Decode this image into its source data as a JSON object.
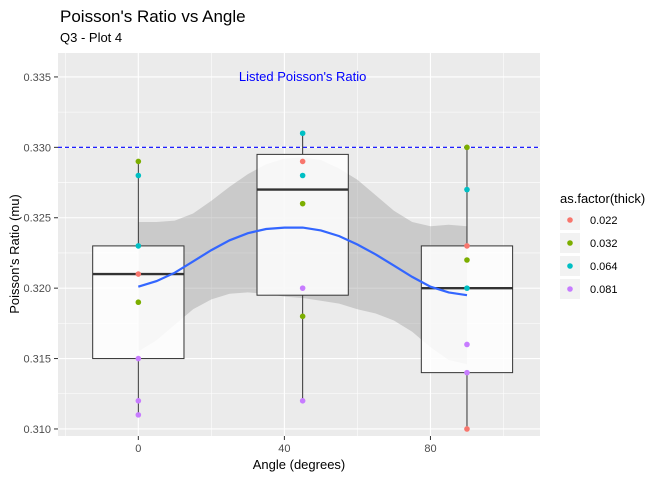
{
  "chart_data": {
    "type": "boxplot-scatter",
    "title": "Poisson's Ratio vs Angle",
    "subtitle": "Q3 - Plot 4",
    "xlabel": "Angle (degrees)",
    "ylabel": "Poisson's Ratio (mu)",
    "xlim": [
      -22,
      110
    ],
    "ylim": [
      0.3095,
      0.3367
    ],
    "x_ticks": [
      0,
      40,
      80
    ],
    "x_tick_labels": [
      "0",
      "40",
      "80"
    ],
    "y_ticks": [
      0.31,
      0.315,
      0.32,
      0.325,
      0.33,
      0.335
    ],
    "y_tick_labels": [
      "0.310",
      "0.315",
      "0.320",
      "0.325",
      "0.330",
      "0.335"
    ],
    "grid": true,
    "legend": {
      "title": "as.factor(thick)",
      "position": "right",
      "entries": [
        {
          "label": "0.022",
          "color": "#F8766D"
        },
        {
          "label": "0.032",
          "color": "#7CAE00"
        },
        {
          "label": "0.064",
          "color": "#00BFC4"
        },
        {
          "label": "0.081",
          "color": "#C77CFF"
        }
      ]
    },
    "reference_line": {
      "y": 0.33,
      "color": "#0000FF",
      "style": "dashed"
    },
    "annotation": {
      "text": "Listed Poisson's Ratio",
      "x": 45,
      "y": 0.3347,
      "color": "#0000FF"
    },
    "boxes": [
      {
        "x": 0,
        "min": 0.311,
        "q1": 0.315,
        "median": 0.321,
        "q3": 0.323,
        "max": 0.329
      },
      {
        "x": 45,
        "min": 0.312,
        "q1": 0.3195,
        "median": 0.327,
        "q3": 0.3295,
        "max": 0.331
      },
      {
        "x": 90,
        "min": 0.31,
        "q1": 0.314,
        "median": 0.32,
        "q3": 0.323,
        "max": 0.33
      }
    ],
    "box_width": 25,
    "points": [
      {
        "x": 0,
        "y": 0.329,
        "group": "0.032"
      },
      {
        "x": 0,
        "y": 0.328,
        "group": "0.064"
      },
      {
        "x": 0,
        "y": 0.323,
        "group": "0.064"
      },
      {
        "x": 0,
        "y": 0.321,
        "group": "0.022"
      },
      {
        "x": 0,
        "y": 0.319,
        "group": "0.032"
      },
      {
        "x": 0,
        "y": 0.315,
        "group": "0.081"
      },
      {
        "x": 0,
        "y": 0.312,
        "group": "0.081"
      },
      {
        "x": 0,
        "y": 0.311,
        "group": "0.081"
      },
      {
        "x": 45,
        "y": 0.331,
        "group": "0.064"
      },
      {
        "x": 45,
        "y": 0.329,
        "group": "0.022"
      },
      {
        "x": 45,
        "y": 0.328,
        "group": "0.064"
      },
      {
        "x": 45,
        "y": 0.326,
        "group": "0.032"
      },
      {
        "x": 45,
        "y": 0.32,
        "group": "0.081"
      },
      {
        "x": 45,
        "y": 0.318,
        "group": "0.032"
      },
      {
        "x": 45,
        "y": 0.312,
        "group": "0.081"
      },
      {
        "x": 90,
        "y": 0.33,
        "group": "0.032"
      },
      {
        "x": 90,
        "y": 0.327,
        "group": "0.064"
      },
      {
        "x": 90,
        "y": 0.323,
        "group": "0.022"
      },
      {
        "x": 90,
        "y": 0.322,
        "group": "0.032"
      },
      {
        "x": 90,
        "y": 0.32,
        "group": "0.064"
      },
      {
        "x": 90,
        "y": 0.316,
        "group": "0.081"
      },
      {
        "x": 90,
        "y": 0.314,
        "group": "0.081"
      },
      {
        "x": 90,
        "y": 0.31,
        "group": "0.022"
      }
    ],
    "smooth": {
      "color": "#3366FF",
      "x": [
        0,
        5,
        10,
        15,
        20,
        25,
        30,
        35,
        40,
        45,
        50,
        55,
        60,
        65,
        70,
        75,
        80,
        85,
        90
      ],
      "y": [
        0.3201,
        0.3205,
        0.3211,
        0.3219,
        0.3227,
        0.3234,
        0.3239,
        0.3242,
        0.3243,
        0.3243,
        0.3241,
        0.3237,
        0.3231,
        0.3224,
        0.3216,
        0.3208,
        0.3201,
        0.3197,
        0.3195
      ],
      "se_upper": [
        0.3247,
        0.3247,
        0.3248,
        0.3253,
        0.3262,
        0.3272,
        0.3281,
        0.3288,
        0.3292,
        0.3293,
        0.3291,
        0.3285,
        0.3277,
        0.3266,
        0.3255,
        0.3247,
        0.3244,
        0.3245,
        0.3244
      ],
      "se_lower": [
        0.3155,
        0.3163,
        0.3174,
        0.3185,
        0.3192,
        0.3196,
        0.3197,
        0.3196,
        0.3194,
        0.3193,
        0.3191,
        0.3189,
        0.3185,
        0.3182,
        0.3177,
        0.3169,
        0.3158,
        0.3149,
        0.3146
      ]
    }
  }
}
